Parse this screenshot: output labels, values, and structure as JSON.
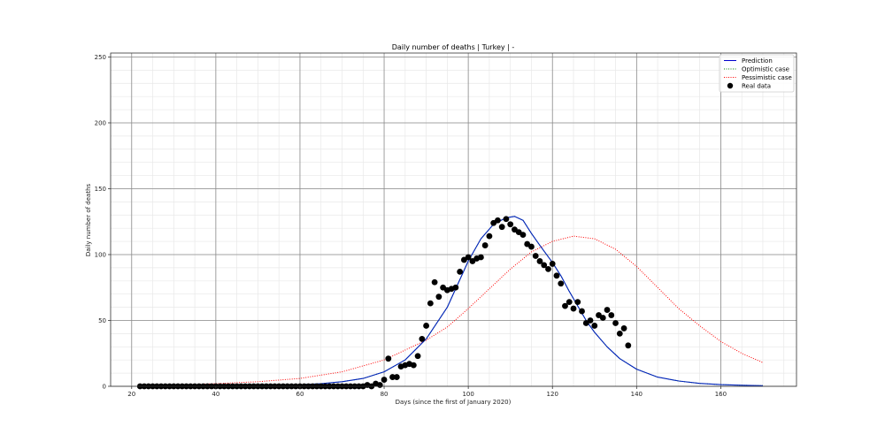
{
  "chart_data": {
    "type": "line",
    "title": "Daily number of deaths | Turkey | -",
    "xlabel": "Days (since the first of January 2020)",
    "ylabel": "Daily number of deaths",
    "xlim": [
      15,
      178
    ],
    "ylim": [
      0,
      253
    ],
    "xticks": [
      20,
      40,
      60,
      80,
      100,
      120,
      140,
      160
    ],
    "yticks": [
      0,
      50,
      100,
      150,
      200,
      250
    ],
    "grid": {
      "major": true,
      "minor": true,
      "x_minor_step": 5,
      "y_minor_step": 10
    },
    "legend": {
      "position": "upper right",
      "entries": [
        {
          "label": "Prediction",
          "style": "solid",
          "color": "#0000cc"
        },
        {
          "label": "Optimistic case",
          "style": "dotted",
          "color": "#008000"
        },
        {
          "label": "Pessimistic case",
          "style": "dotted",
          "color": "#ff0000"
        },
        {
          "label": "Real data",
          "style": "marker",
          "color": "#000000"
        }
      ]
    },
    "series": [
      {
        "name": "Prediction",
        "color": "#0022bb",
        "style": "solid",
        "x": [
          22,
          30,
          40,
          50,
          60,
          65,
          70,
          75,
          80,
          85,
          90,
          95,
          100,
          103,
          106,
          109,
          111,
          113,
          115,
          117,
          120,
          122,
          124,
          126,
          128,
          130,
          133,
          136,
          140,
          145,
          150,
          155,
          160,
          165,
          170
        ],
        "y": [
          0,
          0.1,
          0.3,
          0.6,
          1.2,
          2,
          3.5,
          6,
          11,
          20,
          36,
          60,
          95,
          112,
          123,
          128,
          129,
          126,
          116,
          107,
          94,
          84,
          72,
          61,
          50,
          41,
          30,
          21,
          13,
          7,
          4,
          2.2,
          1.3,
          0.8,
          0.5
        ]
      },
      {
        "name": "Optimistic case",
        "color": "#008000",
        "style": "dotted",
        "x": [
          22,
          30,
          40,
          50,
          60,
          65,
          70,
          75,
          80,
          85,
          90,
          95,
          100,
          103,
          106,
          109,
          111,
          113,
          115,
          117,
          120,
          122,
          124,
          126,
          128,
          130,
          133,
          136,
          140,
          145,
          150,
          155,
          160,
          165,
          170
        ],
        "y": [
          0,
          0.1,
          0.3,
          0.6,
          1.2,
          2,
          3.5,
          6,
          11,
          20,
          36,
          60,
          95,
          112,
          123,
          128,
          129,
          126,
          116,
          107,
          94,
          84,
          72,
          61,
          50,
          41,
          30,
          21,
          13,
          7,
          4,
          2.2,
          1.3,
          0.8,
          0.5
        ]
      },
      {
        "name": "Pessimistic case",
        "color": "#ff0000",
        "style": "dotted",
        "x": [
          22,
          30,
          40,
          50,
          60,
          70,
          80,
          90,
          95,
          100,
          105,
          110,
          115,
          120,
          125,
          130,
          135,
          140,
          145,
          150,
          155,
          160,
          165,
          170
        ],
        "y": [
          0.5,
          1,
          2,
          3.5,
          6,
          11,
          20,
          35,
          45,
          59,
          74,
          89,
          102,
          110,
          114,
          112,
          104,
          91,
          75,
          59,
          46,
          34,
          25,
          18
        ]
      },
      {
        "name": "Real data",
        "color": "#000000",
        "style": "marker",
        "x": [
          22,
          23,
          24,
          25,
          26,
          27,
          28,
          29,
          30,
          31,
          32,
          33,
          34,
          35,
          36,
          37,
          38,
          39,
          40,
          41,
          42,
          43,
          44,
          45,
          46,
          47,
          48,
          49,
          50,
          51,
          52,
          53,
          54,
          55,
          56,
          57,
          58,
          59,
          60,
          61,
          62,
          63,
          64,
          65,
          66,
          67,
          68,
          69,
          70,
          71,
          72,
          73,
          74,
          75,
          76,
          77,
          78,
          79,
          80,
          81,
          82,
          83,
          84,
          85,
          86,
          87,
          88,
          89,
          90,
          91,
          92,
          93,
          94,
          95,
          96,
          97,
          98,
          99,
          100,
          101,
          102,
          103,
          104,
          105,
          106,
          107,
          108,
          109,
          110,
          111,
          112,
          113,
          114,
          115,
          116,
          117,
          118,
          119,
          120,
          121,
          122,
          123,
          124,
          125,
          126,
          127,
          128,
          129,
          130,
          131,
          132,
          133,
          134,
          135,
          136,
          137,
          138
        ],
        "y": [
          0,
          0,
          0,
          0,
          0,
          0,
          0,
          0,
          0,
          0,
          0,
          0,
          0,
          0,
          0,
          0,
          0,
          0,
          0,
          0,
          0,
          0,
          0,
          0,
          0,
          0,
          0,
          0,
          0,
          0,
          0,
          0,
          0,
          0,
          0,
          0,
          0,
          0,
          0,
          0,
          0,
          0,
          0,
          0,
          0,
          0,
          0,
          0,
          0,
          0,
          0,
          0,
          0,
          0,
          1,
          0,
          2,
          1,
          5,
          21,
          7,
          7,
          15,
          16,
          17,
          16,
          23,
          36,
          46,
          63,
          79,
          68,
          75,
          73,
          74,
          75,
          87,
          96,
          98,
          95,
          97,
          98,
          107,
          114,
          124,
          126,
          121,
          127,
          123,
          119,
          117,
          115,
          108,
          106,
          99,
          95,
          92,
          89,
          93,
          84,
          78,
          61,
          64,
          59,
          64,
          57,
          48,
          50,
          46,
          54,
          52,
          58,
          54,
          48,
          40,
          44,
          31
        ]
      }
    ]
  }
}
